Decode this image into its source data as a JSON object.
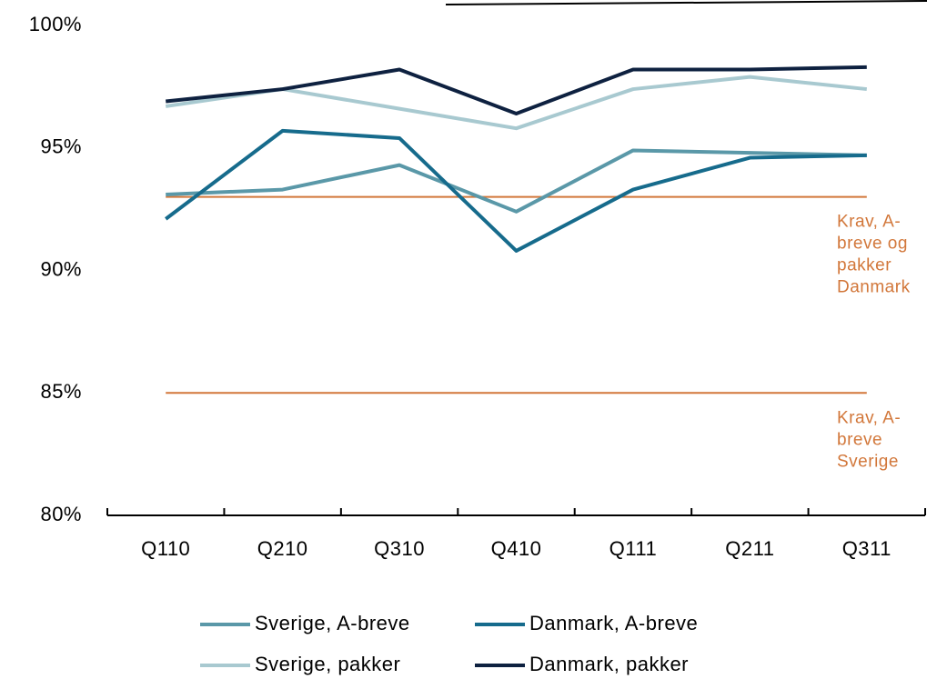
{
  "chart_data": {
    "type": "line",
    "categories": [
      "Q110",
      "Q210",
      "Q310",
      "Q410",
      "Q111",
      "Q211",
      "Q311"
    ],
    "series": [
      {
        "name": "Sverige, A-breve",
        "color": "#5a98a8",
        "values": [
          93.1,
          93.3,
          94.3,
          92.4,
          94.9,
          94.8,
          94.7
        ]
      },
      {
        "name": "Danmark, A-breve",
        "color": "#166b8c",
        "values": [
          92.1,
          95.7,
          95.4,
          90.8,
          93.3,
          94.6,
          94.7
        ]
      },
      {
        "name": "Sverige, pakker",
        "color": "#a8c9d0",
        "values": [
          96.7,
          97.4,
          96.6,
          95.8,
          97.4,
          97.9,
          97.4
        ]
      },
      {
        "name": "Danmark, pakker",
        "color": "#0e2140",
        "values": [
          96.9,
          97.4,
          98.2,
          96.4,
          98.2,
          98.2,
          98.3
        ]
      }
    ],
    "reference_lines": [
      {
        "value": 93,
        "color": "#d2773a",
        "label": [
          "Krav, A-",
          "breve og",
          "pakker",
          "Danmark"
        ]
      },
      {
        "value": 85,
        "color": "#d2773a",
        "label": [
          "Krav, A-",
          "breve",
          "Sverige"
        ]
      }
    ],
    "ylim": [
      80,
      100
    ],
    "yticks": [
      {
        "value": 80,
        "label": "80%"
      },
      {
        "value": 85,
        "label": "85%"
      },
      {
        "value": 90,
        "label": "90%"
      },
      {
        "value": 95,
        "label": "95%"
      },
      {
        "value": 100,
        "label": "100%"
      }
    ],
    "legend": "bottom"
  }
}
